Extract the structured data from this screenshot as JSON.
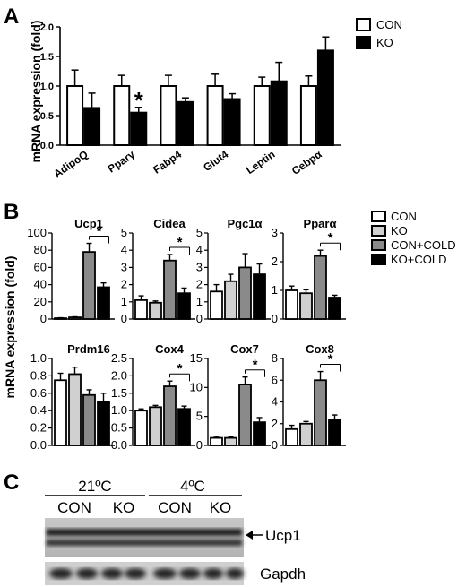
{
  "panel_a": {
    "letter": "A",
    "legend": [
      "CON",
      "KO"
    ],
    "ylabel": "mRNA expression (fold)",
    "chart_data": {
      "type": "bar",
      "categories": [
        "AdipoQ",
        "Pparγ",
        "Fabp4",
        "Glut4",
        "Leptin",
        "Cebpα"
      ],
      "series": [
        {
          "name": "CON",
          "values": [
            1.0,
            1.0,
            1.0,
            1.0,
            1.0,
            1.0
          ],
          "errors": [
            0.27,
            0.18,
            0.18,
            0.2,
            0.15,
            0.17
          ]
        },
        {
          "name": "KO",
          "values": [
            0.63,
            0.55,
            0.73,
            0.78,
            1.08,
            1.6
          ],
          "errors": [
            0.25,
            0.09,
            0.07,
            0.09,
            0.32,
            0.23
          ]
        }
      ],
      "ylim": [
        0,
        2.0
      ],
      "yticks": [
        "0.0",
        "0.5",
        "1.0",
        "1.5",
        "2.0"
      ],
      "annotations": [
        {
          "category": "Pparγ",
          "text": "*"
        }
      ]
    }
  },
  "panel_b": {
    "letter": "B",
    "legend": [
      "CON",
      "KO",
      "CON+COLD",
      "KO+COLD"
    ],
    "ylabel": "mRNA expression (fold)",
    "colors": [
      "#ffffff",
      "#d0d0d0",
      "#8a8a8a",
      "#000000"
    ],
    "chart_data": [
      {
        "type": "bar",
        "title": "Ucp1",
        "values": [
          1,
          2,
          78,
          37
        ],
        "errors": [
          0.5,
          0.6,
          10,
          5
        ],
        "ylim": [
          0,
          100
        ],
        "yticks": [
          "0",
          "20",
          "40",
          "60",
          "80",
          "100"
        ],
        "sig": "*"
      },
      {
        "type": "bar",
        "title": "Cidea",
        "values": [
          1.1,
          0.95,
          3.4,
          1.5
        ],
        "errors": [
          0.25,
          0.1,
          0.35,
          0.3
        ],
        "ylim": [
          0,
          5
        ],
        "yticks": [
          "0",
          "1",
          "2",
          "3",
          "4",
          "5"
        ],
        "sig": "*"
      },
      {
        "type": "bar",
        "title": "Pgc1α",
        "values": [
          1.6,
          2.2,
          3.0,
          2.6
        ],
        "errors": [
          0.4,
          0.4,
          0.8,
          0.6
        ],
        "ylim": [
          0,
          5
        ],
        "yticks": [
          "0",
          "1",
          "2",
          "3",
          "4",
          "5"
        ],
        "sig": ""
      },
      {
        "type": "bar",
        "title": "Pparα",
        "values": [
          1.0,
          0.9,
          2.2,
          0.75
        ],
        "errors": [
          0.15,
          0.12,
          0.2,
          0.08
        ],
        "ylim": [
          0,
          3
        ],
        "yticks": [
          "0",
          "1",
          "2",
          "3"
        ],
        "sig": "*"
      },
      {
        "type": "bar",
        "title": "Prdm16",
        "values": [
          0.75,
          0.82,
          0.58,
          0.5
        ],
        "errors": [
          0.08,
          0.08,
          0.06,
          0.1
        ],
        "ylim": [
          0,
          1.0
        ],
        "yticks": [
          "0.0",
          "0.2",
          "0.4",
          "0.6",
          "0.8",
          "1.0"
        ],
        "sig": ""
      },
      {
        "type": "bar",
        "title": "Cox4",
        "values": [
          1.0,
          1.1,
          1.7,
          1.05
        ],
        "errors": [
          0.05,
          0.05,
          0.15,
          0.08
        ],
        "ylim": [
          0,
          2.5
        ],
        "yticks": [
          "0.0",
          "0.5",
          "1.0",
          "1.5",
          "2.0",
          "2.5"
        ],
        "sig": "*"
      },
      {
        "type": "bar",
        "title": "Cox7",
        "values": [
          1.3,
          1.3,
          10.5,
          4.0
        ],
        "errors": [
          0.25,
          0.2,
          1.3,
          0.8
        ],
        "ylim": [
          0,
          15
        ],
        "yticks": [
          "0",
          "5",
          "10",
          "15"
        ],
        "sig": "*"
      },
      {
        "type": "bar",
        "title": "Cox8",
        "values": [
          1.5,
          2.0,
          6.0,
          2.4
        ],
        "errors": [
          0.35,
          0.2,
          0.8,
          0.4
        ],
        "ylim": [
          0,
          8
        ],
        "yticks": [
          "0",
          "2",
          "4",
          "6",
          "8"
        ],
        "sig": "*"
      }
    ]
  },
  "panel_c": {
    "letter": "C",
    "temp_21": "21ºC",
    "temp_4": "4ºC",
    "groups": [
      "CON",
      "KO",
      "CON",
      "KO"
    ],
    "bands": [
      "Ucp1",
      "Gapdh"
    ]
  }
}
